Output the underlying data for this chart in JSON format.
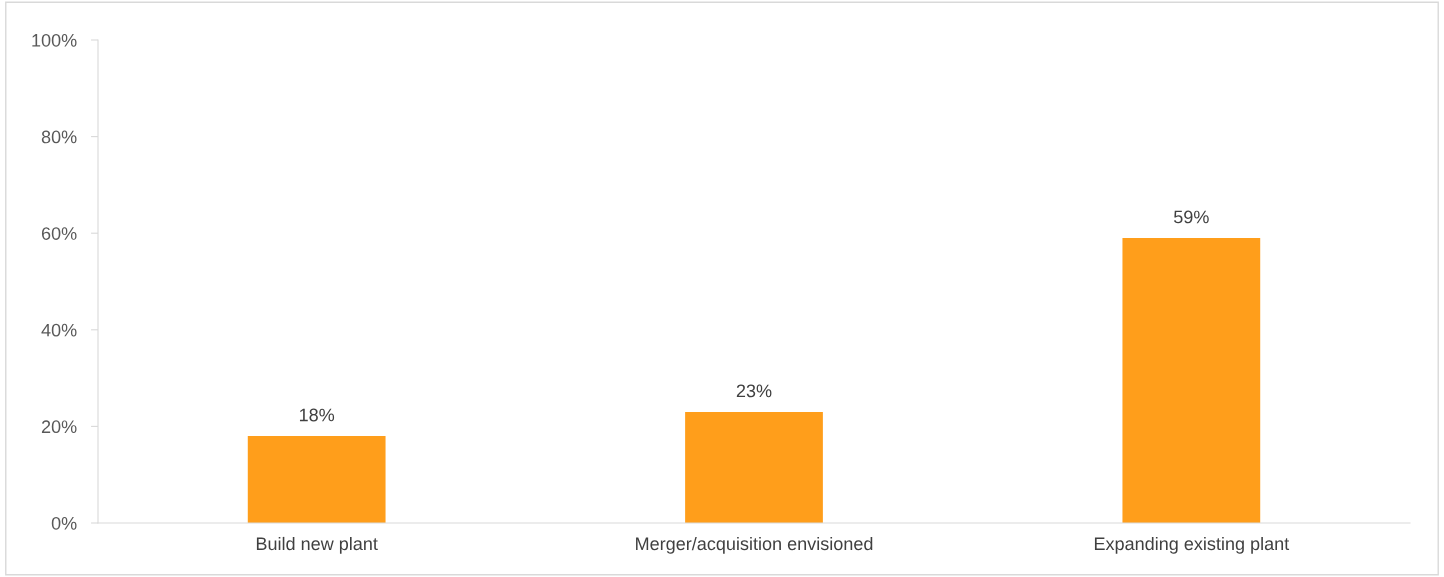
{
  "chart_data": {
    "type": "bar",
    "categories": [
      "Build new plant",
      "Merger/acquisition envisioned",
      "Expanding existing plant"
    ],
    "values": [
      18,
      23,
      59
    ],
    "value_labels": [
      "18%",
      "23%",
      "59%"
    ],
    "color": "#ff9e1b",
    "ylim": [
      0,
      100
    ],
    "yticks": [
      {
        "value": 0,
        "label": "0%"
      },
      {
        "value": 20,
        "label": "20%"
      },
      {
        "value": 40,
        "label": "40%"
      },
      {
        "value": 60,
        "label": "60%"
      },
      {
        "value": 80,
        "label": "80%"
      },
      {
        "value": 100,
        "label": "100%"
      }
    ],
    "grid": false
  }
}
